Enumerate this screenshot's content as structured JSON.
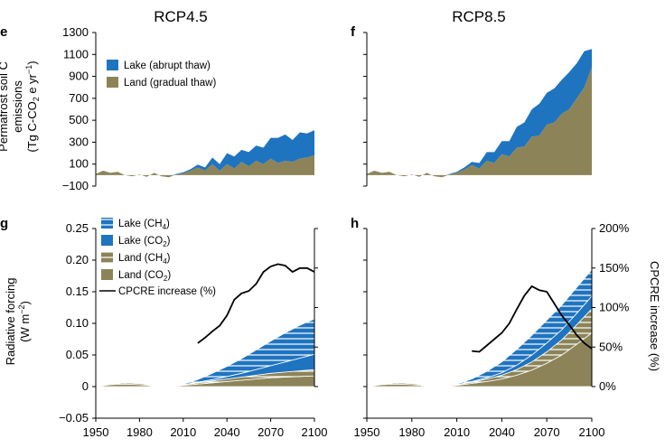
{
  "colors": {
    "lake": "#1f74c0",
    "land": "#8c8458",
    "line": "#000000",
    "hatch": "#ffffff"
  },
  "chart_data": [
    {
      "id": "e",
      "panel_label": "e",
      "type": "area",
      "title": "RCP4.5",
      "ylabel": [
        "Permafrost soil C",
        "emissions",
        "(Tg C-CO",
        "2",
        " e yr",
        "−1",
        ")"
      ],
      "ylim": [
        -100,
        1300
      ],
      "xlim": [
        1950,
        2100
      ],
      "yticks": [
        -100,
        100,
        300,
        500,
        700,
        900,
        1100,
        1300
      ],
      "ytick_labels": [
        "−100",
        "100",
        "300",
        "500",
        "700",
        "900",
        "1100",
        "1300"
      ],
      "legend_placement": "top-left",
      "legend": [
        "Lake (abrupt thaw)",
        "Land (gradual thaw)"
      ],
      "x": [
        1950,
        1955,
        1960,
        1965,
        1970,
        1975,
        1980,
        1985,
        1990,
        1995,
        2000,
        2005,
        2010,
        2015,
        2020,
        2025,
        2030,
        2035,
        2040,
        2045,
        2050,
        2055,
        2060,
        2065,
        2070,
        2075,
        2080,
        2085,
        2090,
        2095,
        2100
      ],
      "series": [
        {
          "name": "Land (gradual thaw)",
          "values": [
            10,
            40,
            20,
            30,
            0,
            -10,
            5,
            -15,
            20,
            -10,
            -20,
            5,
            15,
            40,
            70,
            40,
            100,
            40,
            100,
            60,
            120,
            80,
            130,
            100,
            150,
            110,
            130,
            120,
            150,
            160,
            180
          ]
        },
        {
          "name": "Lake (abrupt thaw)",
          "values": [
            0,
            0,
            0,
            0,
            0,
            0,
            0,
            0,
            0,
            0,
            0,
            5,
            10,
            15,
            25,
            30,
            60,
            60,
            100,
            110,
            110,
            130,
            140,
            150,
            190,
            230,
            240,
            200,
            240,
            220,
            230
          ]
        }
      ]
    },
    {
      "id": "f",
      "panel_label": "f",
      "type": "area",
      "title": "RCP8.5",
      "ylim": [
        -100,
        1300
      ],
      "xlim": [
        1950,
        2100
      ],
      "legend": [],
      "x": [
        1950,
        1955,
        1960,
        1965,
        1970,
        1975,
        1980,
        1985,
        1990,
        1995,
        2000,
        2005,
        2010,
        2015,
        2020,
        2025,
        2030,
        2035,
        2040,
        2045,
        2050,
        2055,
        2060,
        2065,
        2070,
        2075,
        2080,
        2085,
        2090,
        2095,
        2100
      ],
      "series": [
        {
          "name": "Land (gradual thaw)",
          "values": [
            10,
            40,
            20,
            30,
            0,
            -10,
            5,
            -15,
            20,
            -10,
            -20,
            5,
            20,
            50,
            90,
            60,
            130,
            110,
            190,
            170,
            250,
            260,
            350,
            360,
            460,
            480,
            560,
            600,
            700,
            800,
            980
          ]
        },
        {
          "name": "Lake (abrupt thaw)",
          "values": [
            0,
            0,
            0,
            0,
            0,
            0,
            0,
            0,
            0,
            0,
            0,
            5,
            10,
            20,
            30,
            50,
            80,
            100,
            120,
            140,
            190,
            220,
            250,
            290,
            290,
            310,
            310,
            340,
            320,
            330,
            170
          ]
        }
      ]
    },
    {
      "id": "g",
      "panel_label": "g",
      "type": "area",
      "ylabel": [
        "Radiative forcing",
        "(W m",
        "−2",
        ")"
      ],
      "ylim": [
        -0.05,
        0.25
      ],
      "xlim": [
        1950,
        2100
      ],
      "yticks": [
        -0.05,
        0,
        0.05,
        0.1,
        0.15,
        0.2,
        0.25
      ],
      "ytick_labels": [
        "−0.05",
        "0",
        "0.05",
        "0.10",
        "0.15",
        "0.20",
        "0.25"
      ],
      "xticks": [
        1950,
        1980,
        2010,
        2040,
        2070,
        2100
      ],
      "legend_placement": "top-left",
      "legend": [
        {
          "label": "Lake (CH",
          "sub": "4",
          "tail": ")",
          "kind": "lake-ch4"
        },
        {
          "label": "Lake (CO",
          "sub": "2",
          "tail": ")",
          "kind": "lake-co2"
        },
        {
          "label": "Land (CH",
          "sub": "4",
          "tail": ")",
          "kind": "land-ch4"
        },
        {
          "label": "Land (CO",
          "sub": "2",
          "tail": ")",
          "kind": "land-co2"
        },
        {
          "label": "CPCRE increase (%)",
          "sub": "",
          "tail": "",
          "kind": "line"
        }
      ],
      "x": [
        1950,
        1960,
        1970,
        1980,
        1990,
        2000,
        2010,
        2020,
        2030,
        2040,
        2050,
        2060,
        2070,
        2080,
        2090,
        2100
      ],
      "series": [
        {
          "name": "Land (CO2)",
          "values": [
            0,
            0.003,
            0.004,
            0.003,
            0.001,
            0,
            0.002,
            0.004,
            0.006,
            0.008,
            0.01,
            0.012,
            0.014,
            0.015,
            0.016,
            0.017
          ]
        },
        {
          "name": "Land (CH4)",
          "values": [
            0,
            0.001,
            0.002,
            0.002,
            0.001,
            0,
            0.001,
            0.002,
            0.003,
            0.004,
            0.005,
            0.006,
            0.007,
            0.008,
            0.009,
            0.01
          ]
        },
        {
          "name": "Lake (CO2)",
          "values": [
            0,
            0,
            0,
            0,
            0,
            0,
            0,
            0.001,
            0.002,
            0.004,
            0.006,
            0.009,
            0.012,
            0.016,
            0.02,
            0.024
          ]
        },
        {
          "name": "Lake (CH4)",
          "values": [
            0,
            0,
            0,
            0,
            0,
            0,
            0.001,
            0.004,
            0.01,
            0.016,
            0.023,
            0.031,
            0.039,
            0.046,
            0.052,
            0.056
          ]
        }
      ],
      "line_series": {
        "name": "CPCRE increase (%)",
        "x": [
          2020,
          2025,
          2030,
          2035,
          2040,
          2045,
          2050,
          2055,
          2060,
          2065,
          2070,
          2075,
          2080,
          2085,
          2090,
          2095,
          2100
        ],
        "values": [
          55,
          62,
          70,
          77,
          90,
          110,
          118,
          121,
          130,
          145,
          152,
          155,
          153,
          145,
          150,
          150,
          145
        ]
      }
    },
    {
      "id": "h",
      "panel_label": "h",
      "type": "area",
      "ylabel_right": "CPCRE increase (%)",
      "ylim": [
        -0.05,
        0.25
      ],
      "ylim_right": [
        0,
        200
      ],
      "xlim": [
        1950,
        2100
      ],
      "xticks": [
        1950,
        1980,
        2010,
        2040,
        2070,
        2100
      ],
      "yticks_right": [
        0,
        50,
        100,
        150,
        200
      ],
      "ytick_right_labels": [
        "0%",
        "50%",
        "100%",
        "150%",
        "200%"
      ],
      "legend": [],
      "x": [
        1950,
        1960,
        1970,
        1980,
        1990,
        2000,
        2010,
        2020,
        2030,
        2040,
        2050,
        2060,
        2070,
        2080,
        2090,
        2100
      ],
      "series": [
        {
          "name": "Land (CO2)",
          "values": [
            0,
            0.003,
            0.004,
            0.003,
            0.001,
            0,
            0.002,
            0.005,
            0.008,
            0.012,
            0.018,
            0.026,
            0.037,
            0.05,
            0.067,
            0.085
          ]
        },
        {
          "name": "Land (CH4)",
          "values": [
            0,
            0.001,
            0.002,
            0.002,
            0.001,
            0,
            0.001,
            0.002,
            0.004,
            0.006,
            0.009,
            0.013,
            0.018,
            0.024,
            0.031,
            0.038
          ]
        },
        {
          "name": "Lake (CO2)",
          "values": [
            0,
            0,
            0,
            0,
            0,
            0,
            0,
            0.001,
            0.002,
            0.004,
            0.007,
            0.011,
            0.014,
            0.016,
            0.018,
            0.02
          ]
        },
        {
          "name": "Lake (CH4)",
          "values": [
            0,
            0,
            0,
            0,
            0,
            0,
            0.001,
            0.004,
            0.01,
            0.017,
            0.025,
            0.031,
            0.036,
            0.039,
            0.041,
            0.042
          ]
        }
      ],
      "line_series": {
        "name": "CPCRE increase (%)",
        "x": [
          2020,
          2025,
          2030,
          2035,
          2040,
          2045,
          2050,
          2055,
          2060,
          2065,
          2070,
          2075,
          2080,
          2085,
          2090,
          2095,
          2100
        ],
        "values": [
          45,
          44,
          52,
          60,
          68,
          80,
          98,
          115,
          127,
          122,
          120,
          105,
          90,
          78,
          65,
          55,
          48
        ]
      }
    }
  ]
}
